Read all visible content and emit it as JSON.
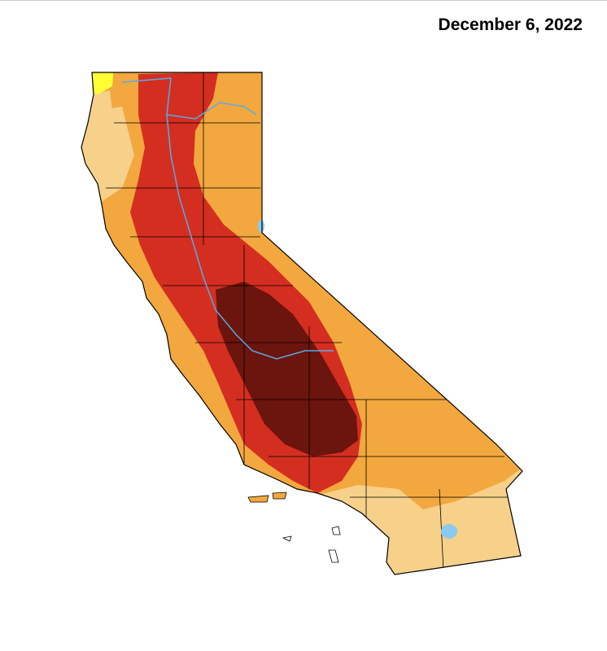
{
  "title": "December 6, 2022"
}
